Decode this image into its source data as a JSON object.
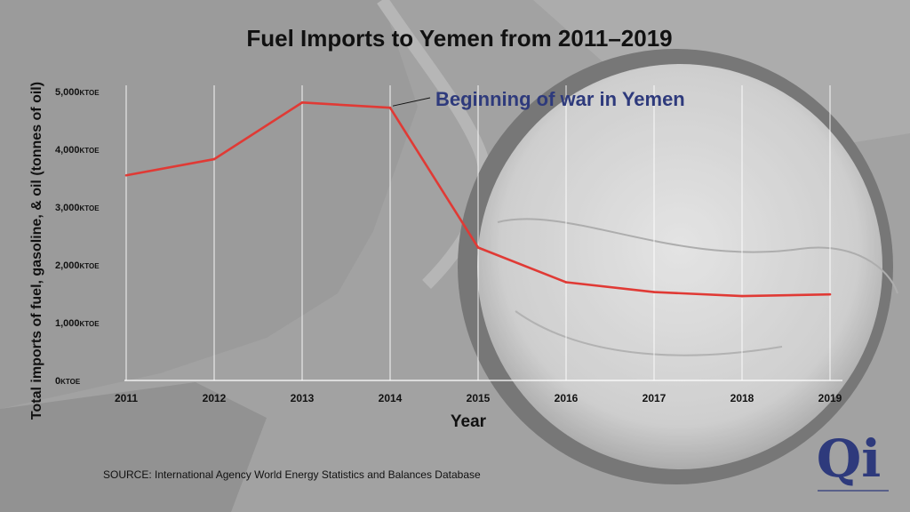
{
  "chart_data": {
    "type": "line",
    "title": "Fuel Imports to Yemen from 2011–2019",
    "xlabel": "Year",
    "ylabel": "Total imports of fuel, gasoline, & oil (tonnes of oil)",
    "ytick_unit": "KTOE",
    "y_ticks": [
      {
        "value": 0,
        "label": "0"
      },
      {
        "value": 1000,
        "label": "1,000"
      },
      {
        "value": 2000,
        "label": "2,000"
      },
      {
        "value": 3000,
        "label": "3,000"
      },
      {
        "value": 4000,
        "label": "4,000"
      },
      {
        "value": 5000,
        "label": "5,000"
      }
    ],
    "ylim": [
      0,
      5000
    ],
    "x": [
      "2011",
      "2012",
      "2013",
      "2014",
      "2015",
      "2016",
      "2017",
      "2018",
      "2019"
    ],
    "series": [
      {
        "color": "#e03a35",
        "values": [
          3550,
          3830,
          4810,
          4720,
          2300,
          1700,
          1530,
          1460,
          1490
        ]
      }
    ],
    "grid": "vertical",
    "annotations": [
      {
        "text": "Beginning of war in Yemen",
        "x": "2014",
        "color": "#2e3a7c"
      }
    ]
  },
  "footer": {
    "source": "SOURCE: International Agency World Energy Statistics and Balances Database"
  },
  "logo": {
    "text": "Qi",
    "color": "#2e3a7c"
  }
}
